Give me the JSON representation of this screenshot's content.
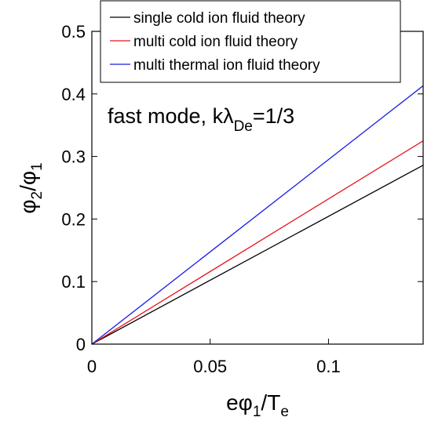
{
  "chart_data": {
    "type": "line",
    "xlabel": {
      "base": "eφ",
      "sub1": "1",
      "mid": "/T",
      "sub2": "e"
    },
    "ylabel": {
      "base1": "φ",
      "sub1": "2",
      "mid": "/φ",
      "sub2": "1"
    },
    "annotation": {
      "text": "fast mode, kλ",
      "sub": "De",
      "tail": "=1/3"
    },
    "xlim": [
      0,
      0.14
    ],
    "ylim": [
      0,
      0.5
    ],
    "xticks": [
      0,
      0.05,
      0.1
    ],
    "xtick_labels": [
      "0",
      "0.05",
      "0.1"
    ],
    "yticks": [
      0,
      0.1,
      0.2,
      0.3,
      0.4,
      0.5
    ],
    "ytick_labels": [
      "0",
      "0.1",
      "0.2",
      "0.3",
      "0.4",
      "0.5"
    ],
    "grid": false,
    "legend_position": "top-right",
    "series": [
      {
        "name": "single cold ion fluid theory",
        "color": "#000000",
        "x": [
          0,
          0.14
        ],
        "y": [
          0,
          0.286
        ]
      },
      {
        "name": "multi cold ion fluid theory",
        "color": "#e8141a",
        "x": [
          0,
          0.14
        ],
        "y": [
          0,
          0.325
        ]
      },
      {
        "name": "multi thermal ion fluid theory",
        "color": "#1a1ae6",
        "x": [
          0,
          0.14
        ],
        "y": [
          0,
          0.413
        ]
      }
    ]
  }
}
